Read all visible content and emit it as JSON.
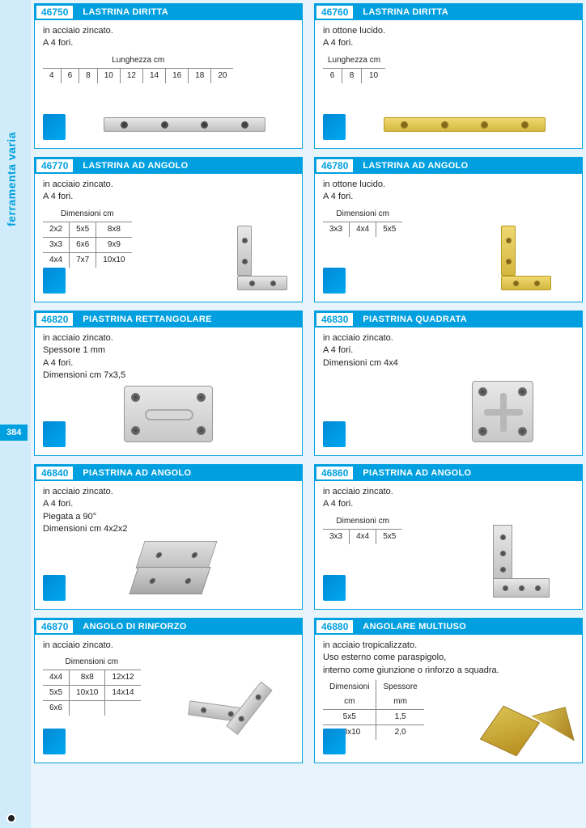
{
  "sidebar_label": "ferramenta varia",
  "page_number": "384",
  "cards": [
    {
      "code": "46750",
      "title": "LASTRINA DIRITTA",
      "desc": [
        "in acciaio zincato.",
        "A 4 fori."
      ],
      "table_header": "Lunghezza  cm",
      "table_rows": [
        [
          "4",
          "6",
          "8",
          "10",
          "12",
          "14",
          "16",
          "18",
          "20"
        ]
      ]
    },
    {
      "code": "46760",
      "title": "LASTRINA DIRITTA",
      "desc": [
        "in ottone lucido.",
        "A 4 fori."
      ],
      "table_header": "Lunghezza  cm",
      "table_rows": [
        [
          "6",
          "8",
          "10"
        ]
      ]
    },
    {
      "code": "46770",
      "title": "LASTRINA AD ANGOLO",
      "desc": [
        "in acciaio zincato.",
        "A 4 fori."
      ],
      "table_header": "Dimensioni  cm",
      "table_rows": [
        [
          "2x2",
          "5x5",
          "8x8"
        ],
        [
          "3x3",
          "6x6",
          "9x9"
        ],
        [
          "4x4",
          "7x7",
          "10x10"
        ]
      ]
    },
    {
      "code": "46780",
      "title": "LASTRINA AD ANGOLO",
      "desc": [
        "in ottone lucido.",
        "A 4 fori."
      ],
      "table_header": "Dimensioni  cm",
      "table_rows": [
        [
          "3x3",
          "4x4",
          "5x5"
        ]
      ]
    },
    {
      "code": "46820",
      "title": "PIASTRINA RETTANGOLARE",
      "desc": [
        "in acciaio zincato.",
        "Spessore 1 mm",
        "A 4 fori.",
        "Dimensioni cm 7x3,5"
      ]
    },
    {
      "code": "46830",
      "title": "PIASTRINA QUADRATA",
      "desc": [
        "in acciaio zincato.",
        "A 4 fori.",
        "Dimensioni cm 4x4"
      ]
    },
    {
      "code": "46840",
      "title": "PIASTRINA AD ANGOLO",
      "desc": [
        "in acciaio zincato.",
        "A 4 fori.",
        "Piegata a 90°",
        "Dimensioni cm 4x2x2"
      ]
    },
    {
      "code": "46860",
      "title": "PIASTRINA AD ANGOLO",
      "desc": [
        "in acciaio zincato.",
        "A 4 fori."
      ],
      "table_header": "Dimensioni  cm",
      "table_rows": [
        [
          "3x3",
          "4x4",
          "5x5"
        ]
      ]
    },
    {
      "code": "46870",
      "title": "ANGOLO DI RINFORZO",
      "desc": [
        "in acciaio zincato."
      ],
      "table_header": "Dimensioni  cm",
      "table_rows": [
        [
          "4x4",
          "8x8",
          "12x12"
        ],
        [
          "5x5",
          "10x10",
          "14x14"
        ],
        [
          "6x6",
          "",
          ""
        ]
      ]
    },
    {
      "code": "46880",
      "title": "ANGOLARE MULTIUSO",
      "desc": [
        "in acciaio tropicalizzato.",
        "Uso esterno come paraspigolo,",
        "interno come giunzione o rinforzo a squadra."
      ],
      "table2_headers": [
        "Dimensioni",
        "Spessore"
      ],
      "table2_sub": [
        "cm",
        "mm"
      ],
      "table2_rows": [
        [
          "5x5",
          "1,5"
        ],
        [
          "10x10",
          "2,0"
        ]
      ]
    }
  ]
}
